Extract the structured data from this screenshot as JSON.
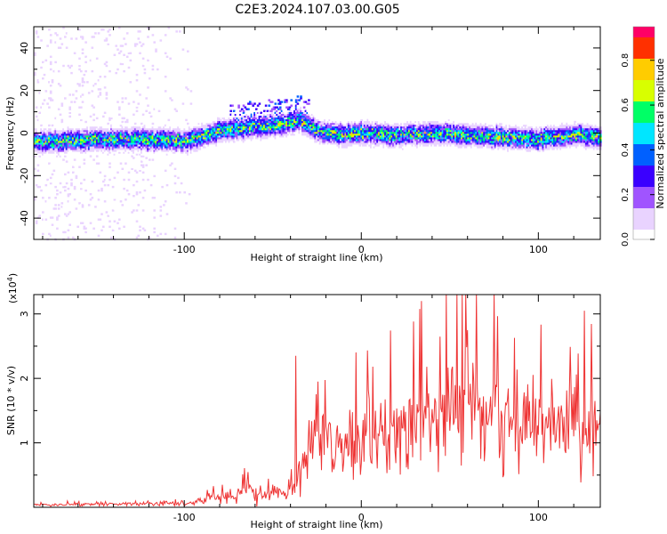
{
  "figure": {
    "title": "C2E3.2024.107.03.00.G05"
  },
  "chart_data": [
    {
      "type": "heatmap",
      "xlabel": "Height of straight line (km)",
      "ylabel": "Frequency (Hz)",
      "xlim": [
        -185,
        135
      ],
      "ylim": [
        -50,
        50
      ],
      "xticks": [
        -100,
        0,
        100
      ],
      "yticks": [
        -40,
        -20,
        0,
        20,
        40
      ],
      "grid": false,
      "colorbar": {
        "label": "Normalized spectral amplitude",
        "range": [
          0,
          0.95
        ],
        "ticks": [
          0.0,
          0.2,
          0.4,
          0.6,
          0.8
        ],
        "colormap": [
          "#ffffff",
          "#e9d3ff",
          "#a054ff",
          "#3a00ff",
          "#0060ff",
          "#00e6ff",
          "#00ff66",
          "#d8ff00",
          "#ffcc00",
          "#ff3000",
          "#ff0066"
        ]
      },
      "ridge": {
        "x": [
          -185,
          -150,
          -120,
          -100,
          -80,
          -60,
          -45,
          -35,
          -25,
          -10,
          0,
          20,
          40,
          60,
          80,
          100,
          120,
          135
        ],
        "y": [
          -4,
          -3,
          -3,
          -4,
          1,
          3,
          4,
          6,
          1,
          -1,
          0,
          -1,
          0,
          -1,
          -2,
          -3,
          -1,
          -2
        ]
      }
    },
    {
      "type": "line",
      "xlabel": "Height of straight line (km)",
      "ylabel": "SNR (10 * v/v)",
      "scale_note": "(x10",
      "scale_exp": "4",
      "scale_close": ")",
      "xlim": [
        -185,
        135
      ],
      "ylim": [
        0,
        3.3
      ],
      "xticks": [
        -100,
        0,
        100
      ],
      "yticks": [
        1,
        2,
        3
      ],
      "grid": false,
      "series": [
        {
          "color": "#ee3333",
          "envelope": {
            "x": [
              -185,
              -150,
              -120,
              -95,
              -80,
              -70,
              -62,
              -55,
              -45,
              -40,
              -37,
              -35,
              -32,
              -30,
              -25,
              -20,
              -10,
              0,
              10,
              20,
              30,
              40,
              50,
              55,
              60,
              70,
              80,
              90,
              100,
              110,
              120,
              130,
              135
            ],
            "mean": [
              0.04,
              0.05,
              0.06,
              0.07,
              0.16,
              0.2,
              0.24,
              0.15,
              0.25,
              0.35,
              0.4,
              0.45,
              0.8,
              0.9,
              0.95,
              1.0,
              1.05,
              1.1,
              1.15,
              1.25,
              1.3,
              1.4,
              1.5,
              1.55,
              1.55,
              1.5,
              1.45,
              1.4,
              1.35,
              1.3,
              1.3,
              1.25,
              1.3
            ],
            "spread": [
              0.02,
              0.03,
              0.03,
              0.04,
              0.1,
              0.14,
              0.2,
              0.1,
              0.15,
              0.2,
              0.25,
              0.3,
              0.5,
              0.55,
              0.5,
              0.5,
              0.55,
              0.6,
              0.65,
              0.7,
              0.75,
              0.8,
              0.85,
              0.9,
              0.9,
              0.85,
              0.85,
              0.8,
              0.8,
              0.8,
              0.75,
              0.75,
              0.7
            ]
          },
          "peaks": [
            {
              "x": -37,
              "y": 2.35
            },
            {
              "x": 34,
              "y": 3.2
            },
            {
              "x": 54,
              "y": 3.3
            },
            {
              "x": 57,
              "y": 3.3
            },
            {
              "x": 75,
              "y": 3.3
            },
            {
              "x": 126,
              "y": 3.05
            }
          ]
        }
      ]
    }
  ]
}
